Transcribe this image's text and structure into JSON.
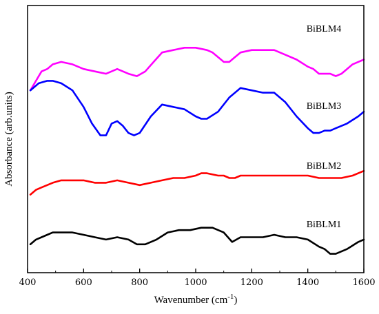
{
  "chart_data": {
    "type": "line",
    "xlabel": "Wavenumber (cm",
    "xlabel_sup": "-1",
    "xlabel_close": ")",
    "ylabel": "Absorbance (arb.units)",
    "xlim": [
      400,
      1600
    ],
    "ylim": [
      0,
      100
    ],
    "x_ticks": [
      400,
      600,
      800,
      1000,
      1200,
      1400,
      1600
    ],
    "y_ticks_labeled": false,
    "grid": false,
    "series": [
      {
        "name": "BiBLM4",
        "color": "#ff00ff",
        "x": [
          410,
          430,
          450,
          470,
          490,
          520,
          560,
          600,
          640,
          680,
          720,
          760,
          790,
          820,
          850,
          880,
          920,
          960,
          1000,
          1040,
          1060,
          1080,
          1100,
          1120,
          1140,
          1160,
          1200,
          1240,
          1280,
          1320,
          1360,
          1400,
          1420,
          1440,
          1460,
          1480,
          1500,
          1520,
          1540,
          1560,
          1580,
          1600
        ],
        "y": [
          70,
          74,
          78,
          79,
          81,
          82,
          81,
          79,
          78,
          77,
          79,
          77,
          76,
          78,
          82,
          86,
          87,
          88,
          88,
          87,
          86,
          84,
          82,
          82,
          84,
          86,
          87,
          87,
          87,
          85,
          83,
          80,
          79,
          77,
          77,
          77,
          76,
          77,
          79,
          81,
          82,
          83
        ]
      },
      {
        "name": "BiBLM3",
        "color": "#0000ff",
        "x": [
          410,
          440,
          470,
          490,
          520,
          560,
          600,
          630,
          660,
          680,
          700,
          720,
          740,
          760,
          780,
          800,
          840,
          880,
          920,
          960,
          1000,
          1020,
          1040,
          1080,
          1120,
          1160,
          1200,
          1240,
          1280,
          1320,
          1360,
          1400,
          1420,
          1440,
          1460,
          1480,
          1500,
          1540,
          1580,
          1600
        ],
        "y": [
          70,
          73,
          74,
          74,
          73,
          70,
          63,
          56,
          51,
          51,
          56,
          57,
          55,
          52,
          51,
          52,
          59,
          64,
          63,
          62,
          59,
          58,
          58,
          61,
          67,
          71,
          70,
          69,
          69,
          65,
          59,
          54,
          52,
          52,
          53,
          53,
          54,
          56,
          59,
          61
        ]
      },
      {
        "name": "BiBLM2",
        "color": "#ff0000",
        "x": [
          410,
          430,
          450,
          470,
          490,
          520,
          560,
          600,
          640,
          680,
          720,
          760,
          800,
          840,
          880,
          920,
          960,
          1000,
          1020,
          1040,
          1080,
          1100,
          1120,
          1140,
          1160,
          1200,
          1240,
          1280,
          1320,
          1360,
          1400,
          1440,
          1480,
          1520,
          1560,
          1600
        ],
        "y": [
          26,
          28,
          29,
          30,
          31,
          32,
          32,
          32,
          31,
          31,
          32,
          31,
          30,
          31,
          32,
          33,
          33,
          34,
          35,
          35,
          34,
          34,
          33,
          33,
          34,
          34,
          34,
          34,
          34,
          34,
          34,
          33,
          33,
          33,
          34,
          36
        ]
      },
      {
        "name": "BiBLM1",
        "color": "#000000",
        "x": [
          410,
          430,
          450,
          470,
          490,
          520,
          560,
          600,
          640,
          680,
          720,
          760,
          790,
          820,
          860,
          900,
          940,
          980,
          1020,
          1060,
          1100,
          1130,
          1160,
          1200,
          1240,
          1280,
          1320,
          1360,
          1400,
          1440,
          1460,
          1480,
          1500,
          1540,
          1580,
          1600
        ],
        "y": [
          5,
          7,
          8,
          9,
          10,
          10,
          10,
          9,
          8,
          7,
          8,
          7,
          5,
          5,
          7,
          10,
          11,
          11,
          12,
          12,
          10,
          6,
          8,
          8,
          8,
          9,
          8,
          8,
          7,
          4,
          3,
          1,
          1,
          3,
          6,
          7
        ]
      }
    ]
  }
}
